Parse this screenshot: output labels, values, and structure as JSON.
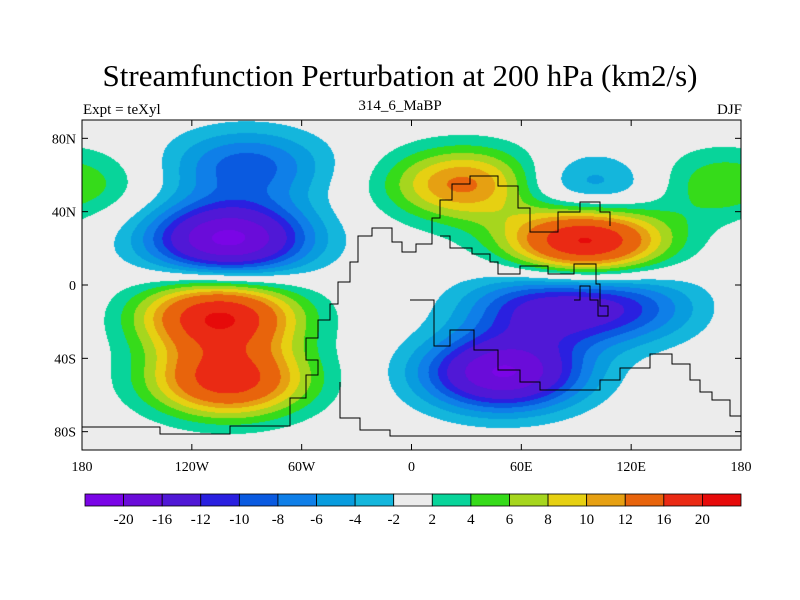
{
  "chart_data": {
    "type": "heatmap",
    "title": "Streamfunction Perturbation at 200 hPa (km2/s)",
    "subtitle_left": "Expt = teXyl",
    "subtitle_center": "314_6_MaBP",
    "subtitle_right": "DJF",
    "xlabel": "",
    "ylabel": "",
    "xlim": [
      -180,
      180
    ],
    "ylim": [
      -90,
      90
    ],
    "x_ticks": [
      {
        "value": -180,
        "label": "180"
      },
      {
        "value": -120,
        "label": "120W"
      },
      {
        "value": -60,
        "label": "60W"
      },
      {
        "value": 0,
        "label": "0"
      },
      {
        "value": 60,
        "label": "60E"
      },
      {
        "value": 120,
        "label": "120E"
      },
      {
        "value": 180,
        "label": "180"
      }
    ],
    "y_ticks": [
      {
        "value": 80,
        "label": "80N"
      },
      {
        "value": 40,
        "label": "40N"
      },
      {
        "value": 0,
        "label": "0"
      },
      {
        "value": -40,
        "label": "40S"
      },
      {
        "value": -80,
        "label": "80S"
      }
    ],
    "levels": [
      -20,
      -16,
      -12,
      -10,
      -8,
      -6,
      -4,
      -2,
      2,
      4,
      6,
      8,
      10,
      12,
      16,
      20
    ],
    "colors": [
      "#7a05e6",
      "#6a0cd9",
      "#5018d6",
      "#2a20e0",
      "#0a5ae0",
      "#0f7fe8",
      "#089cde",
      "#14b6dc",
      "#ececec",
      "#08d49a",
      "#36db1a",
      "#a6d61e",
      "#e6d012",
      "#e6a012",
      "#e8640c",
      "#ea2a14",
      "#e60a0a"
    ],
    "colorbar_labels": [
      "-20",
      "-16",
      "-12",
      "-10",
      "-8",
      "-6",
      "-4",
      "-2",
      "2",
      "4",
      "6",
      "8",
      "10",
      "12",
      "16",
      "20"
    ],
    "anomalies": [
      {
        "lon": -100,
        "lat": 25,
        "value": -21
      },
      {
        "lon": -90,
        "lat": 65,
        "value": -9
      },
      {
        "lon": 95,
        "lat": 25,
        "value": 22
      },
      {
        "lon": 30,
        "lat": 55,
        "value": 13
      },
      {
        "lon": 95,
        "lat": 50,
        "value": -8
      },
      {
        "lon": -105,
        "lat": -17,
        "value": 20
      },
      {
        "lon": -100,
        "lat": -52,
        "value": 18
      },
      {
        "lon": 50,
        "lat": -48,
        "value": -20
      },
      {
        "lon": 70,
        "lat": -13,
        "value": -11
      },
      {
        "lon": 115,
        "lat": -12,
        "value": -9
      },
      {
        "lon": 170,
        "lat": 55,
        "value": 6
      }
    ]
  }
}
